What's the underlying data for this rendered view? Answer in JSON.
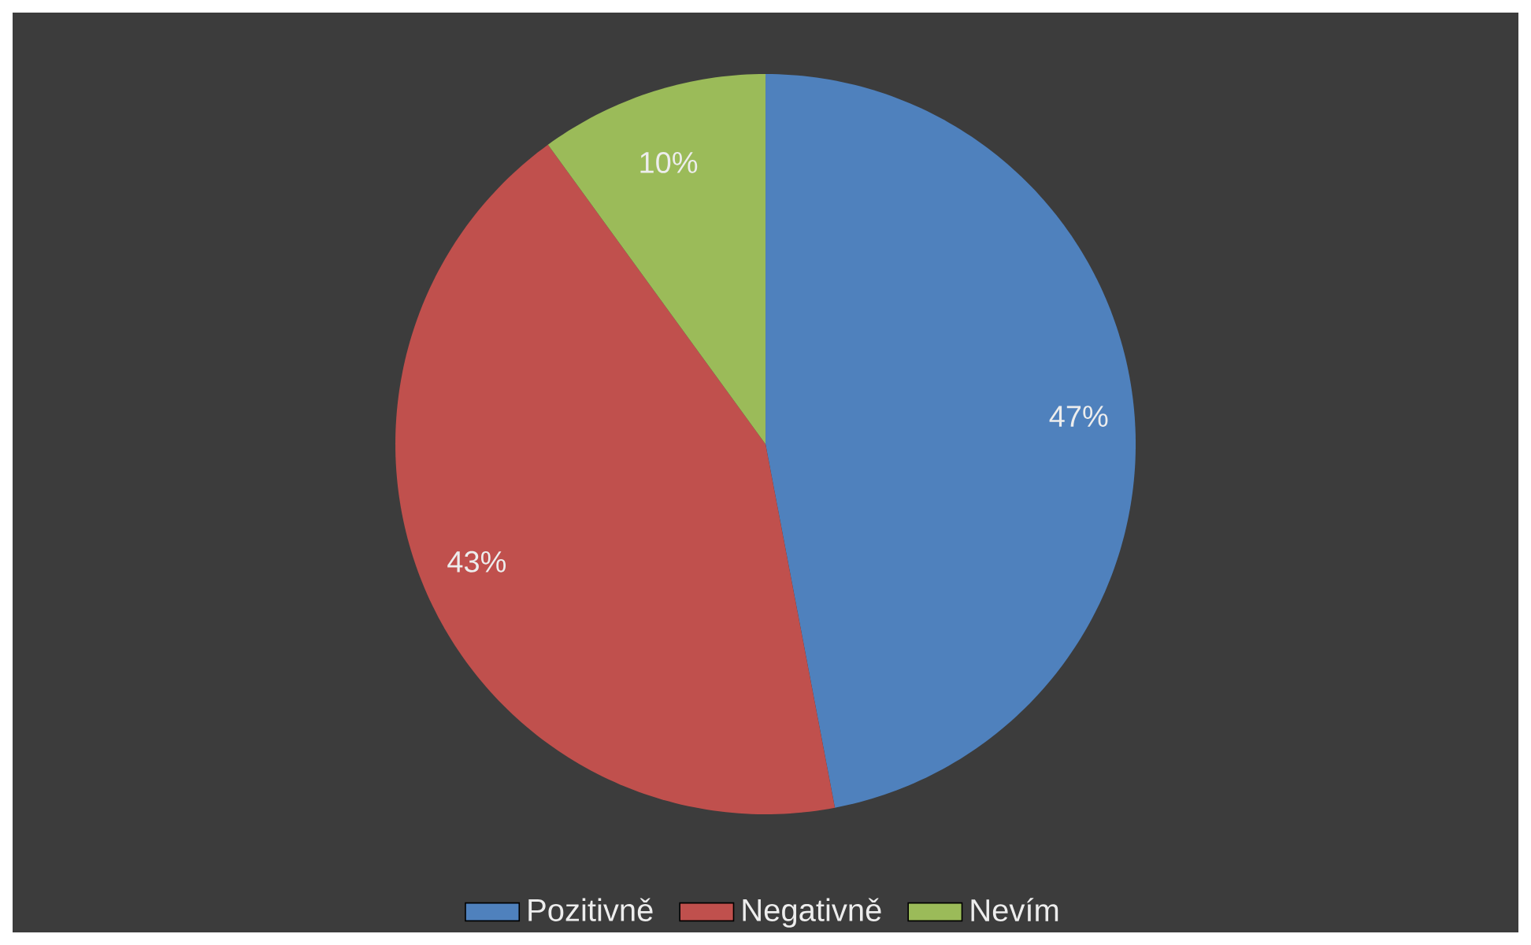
{
  "chart_data": {
    "type": "pie",
    "categories": [
      "Pozitivně",
      "Negativně",
      "Nevím"
    ],
    "values": [
      47,
      43,
      10
    ],
    "colors": [
      "#4f81bd",
      "#c0504d",
      "#9bbb59"
    ],
    "value_labels": [
      "47%",
      "43%",
      "10%"
    ],
    "legend": "bottom"
  }
}
